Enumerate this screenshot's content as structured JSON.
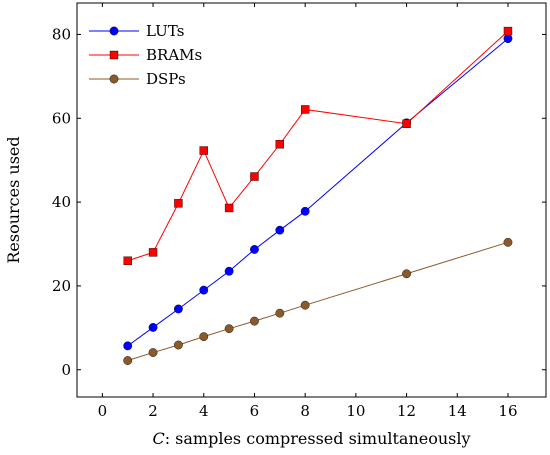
{
  "chart_data": {
    "type": "line",
    "title": "",
    "xlabel_var": "C",
    "xlabel_rest": ": samples compressed simultaneously",
    "ylabel": "Resources used",
    "xlim": [
      -1,
      17.5
    ],
    "ylim": [
      -6.5,
      87.5
    ],
    "xticks": [
      0,
      2,
      4,
      6,
      8,
      10,
      12,
      14,
      16
    ],
    "yticks": [
      0,
      20,
      40,
      60,
      80
    ],
    "x": [
      1,
      2,
      3,
      4,
      5,
      6,
      7,
      8,
      12,
      16
    ],
    "grid": false,
    "legend_position": "top-left",
    "series": [
      {
        "name": "LUTs",
        "color": "#0000ff",
        "marker": "circle",
        "values": [
          5.7,
          10.1,
          14.5,
          19.0,
          23.5,
          28.7,
          33.3,
          37.8,
          58.9,
          79.0
        ]
      },
      {
        "name": "BRAMs",
        "color": "#ff0000",
        "marker": "square",
        "values": [
          26.0,
          28.0,
          39.7,
          52.3,
          38.6,
          46.1,
          53.8,
          62.1,
          58.7,
          80.8
        ]
      },
      {
        "name": "DSPs",
        "color": "#8b5a2b",
        "marker": "circle",
        "values": [
          2.2,
          4.1,
          5.9,
          7.9,
          9.8,
          11.6,
          13.5,
          15.4,
          22.9,
          30.4
        ]
      }
    ]
  }
}
